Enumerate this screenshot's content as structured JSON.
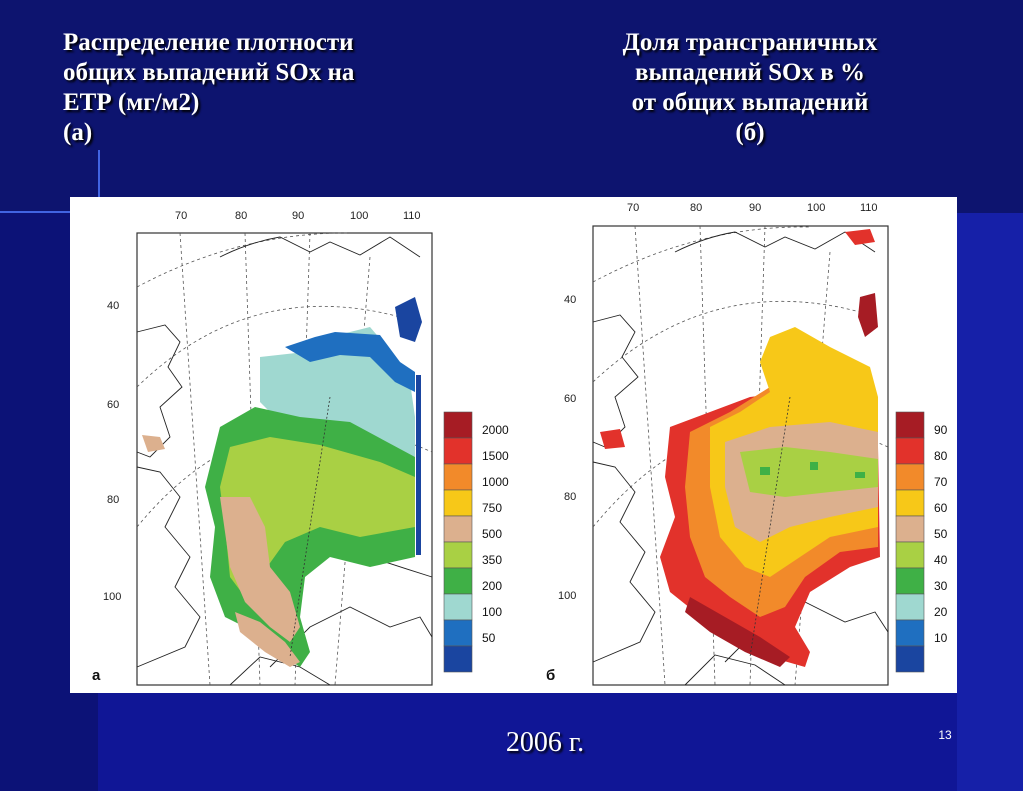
{
  "slide": {
    "title_left": "Распределение плотности\nобщих выпадений SOx на\nЕТР (мг/м2)\n(а)",
    "title_right": "Доля трансграничных\nвыпадений SOx в %\nот общих выпадений\n(б)",
    "year": "2006 г.",
    "slide_number": "13"
  },
  "map_a": {
    "panel_label": "а",
    "top_ticks": [
      "70",
      "80",
      "90",
      "100",
      "110"
    ],
    "left_ticks": [
      "40",
      "60",
      "80",
      "100"
    ],
    "legend": [
      {
        "label": "2000",
        "color": "#a61c24"
      },
      {
        "label": "1500",
        "color": "#e2322b"
      },
      {
        "label": "1000",
        "color": "#f28a2a"
      },
      {
        "label": "750",
        "color": "#f7c818"
      },
      {
        "label": "500",
        "color": "#dcb08e"
      },
      {
        "label": "350",
        "color": "#a9d044"
      },
      {
        "label": "200",
        "color": "#3fb046"
      },
      {
        "label": "100",
        "color": "#9fd8d0"
      },
      {
        "label": "50",
        "color": "#1f6fc0"
      },
      {
        "label": "",
        "color": "#1a45a0"
      }
    ]
  },
  "map_b": {
    "panel_label": "б",
    "top_ticks": [
      "70",
      "80",
      "90",
      "100",
      "110"
    ],
    "left_ticks": [
      "40",
      "60",
      "80",
      "100"
    ],
    "legend": [
      {
        "label": "90",
        "color": "#a61c24"
      },
      {
        "label": "80",
        "color": "#e2322b"
      },
      {
        "label": "70",
        "color": "#f28a2a"
      },
      {
        "label": "60",
        "color": "#f7c818"
      },
      {
        "label": "50",
        "color": "#dcb08e"
      },
      {
        "label": "40",
        "color": "#a9d044"
      },
      {
        "label": "30",
        "color": "#3fb046"
      },
      {
        "label": "20",
        "color": "#9fd8d0"
      },
      {
        "label": "10",
        "color": "#1f6fc0"
      },
      {
        "label": "",
        "color": "#1a45a0"
      }
    ]
  }
}
